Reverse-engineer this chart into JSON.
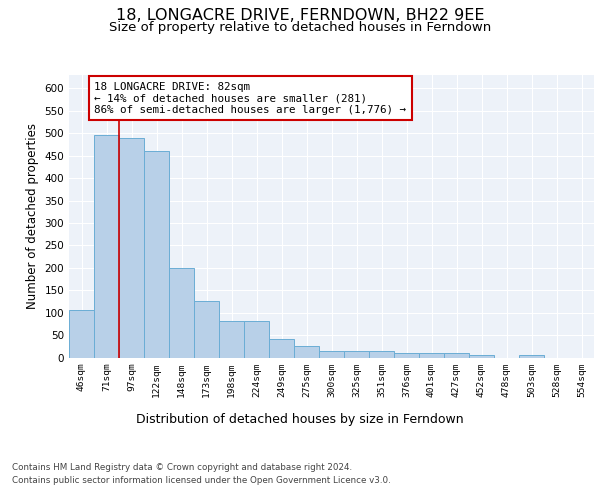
{
  "title1": "18, LONGACRE DRIVE, FERNDOWN, BH22 9EE",
  "title2": "Size of property relative to detached houses in Ferndown",
  "xlabel": "Distribution of detached houses by size in Ferndown",
  "ylabel": "Number of detached properties",
  "categories": [
    "46sqm",
    "71sqm",
    "97sqm",
    "122sqm",
    "148sqm",
    "173sqm",
    "198sqm",
    "224sqm",
    "249sqm",
    "275sqm",
    "300sqm",
    "325sqm",
    "351sqm",
    "376sqm",
    "401sqm",
    "427sqm",
    "452sqm",
    "478sqm",
    "503sqm",
    "528sqm",
    "554sqm"
  ],
  "values": [
    107,
    497,
    490,
    460,
    200,
    125,
    82,
    82,
    42,
    25,
    15,
    15,
    15,
    10,
    10,
    10,
    5,
    0,
    5,
    0,
    0
  ],
  "bar_color": "#b8d0e8",
  "bar_edge_color": "#6aadd5",
  "vline_x": 1.5,
  "vline_color": "#cc0000",
  "annotation_text": "18 LONGACRE DRIVE: 82sqm\n← 14% of detached houses are smaller (281)\n86% of semi-detached houses are larger (1,776) →",
  "annotation_box_color": "#ffffff",
  "annotation_box_edge": "#cc0000",
  "ylim": [
    0,
    630
  ],
  "yticks": [
    0,
    50,
    100,
    150,
    200,
    250,
    300,
    350,
    400,
    450,
    500,
    550,
    600
  ],
  "footnote1": "Contains HM Land Registry data © Crown copyright and database right 2024.",
  "footnote2": "Contains public sector information licensed under the Open Government Licence v3.0.",
  "plot_bg_color": "#edf2f9",
  "title1_fontsize": 11.5,
  "title2_fontsize": 9.5,
  "xlabel_fontsize": 9,
  "ylabel_fontsize": 8.5,
  "annotation_fontsize": 7.8
}
